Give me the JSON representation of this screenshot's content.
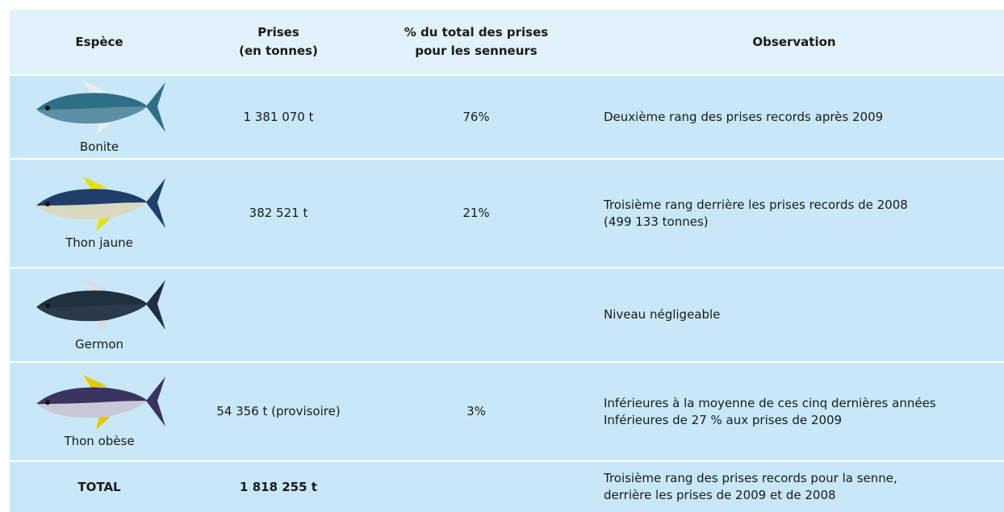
{
  "table": {
    "header": {
      "species": "Espèce",
      "catch": [
        "Prises",
        "(en tonnes)"
      ],
      "share": [
        "% du total des prises",
        "pour les senneurs"
      ],
      "observation": "Observation"
    },
    "rows": [
      {
        "species": "Bonite",
        "catch": "1 381 070 t",
        "share": "76%",
        "observation": [
          "Deuxième rang des prises records après 2009"
        ]
      },
      {
        "species": "Thon jaune",
        "catch": "382 521 t",
        "share": "21%",
        "observation": [
          "Troisième rang derrière les prises records de 2008",
          "(499 133 tonnes)"
        ]
      },
      {
        "species": "Germon",
        "observation": [
          "Niveau négligeable"
        ]
      },
      {
        "species": "Thon obèse",
        "catch": "54 356 t (provisoire)",
        "share": "3%",
        "observation": [
          "Inférieures à la moyenne de ces cinq dernières années",
          "Inférieures de 27 % aux prises de 2009"
        ]
      }
    ],
    "total": {
      "label": "TOTAL",
      "catch": "1 818 255 t",
      "observation": [
        "Troisième rang des prises records pour la senne,",
        "derrière les prises de 2009 et de 2008"
      ]
    }
  }
}
